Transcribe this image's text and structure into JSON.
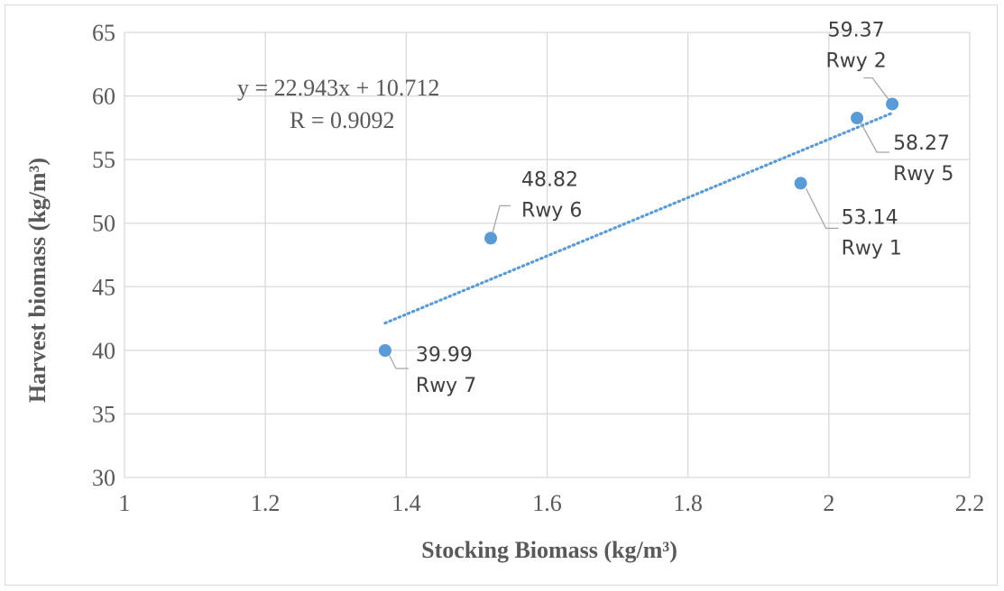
{
  "chart_data": {
    "type": "scatter",
    "title": "",
    "xlabel": "Stocking Biomass (kg/m³)",
    "ylabel": "Harvest biomass (kg/m³)",
    "xlim": [
      1,
      2.2
    ],
    "ylim": [
      30,
      65
    ],
    "xticks": [
      "1",
      "1.2",
      "1.4",
      "1.6",
      "1.8",
      "2",
      "2.2"
    ],
    "yticks": [
      "30",
      "35",
      "40",
      "45",
      "50",
      "55",
      "60",
      "65"
    ],
    "grid": true,
    "legend": "none",
    "marker_color": "#5b9bd5",
    "trendline_color": "#5b9bd5",
    "points": [
      {
        "x": 1.96,
        "y": 53.14,
        "value_label": "53.14",
        "name": "Rwy 1"
      },
      {
        "x": 2.09,
        "y": 59.37,
        "value_label": "59.37",
        "name": "Rwy 2"
      },
      {
        "x": 2.04,
        "y": 58.27,
        "value_label": "58.27",
        "name": "Rwy 5"
      },
      {
        "x": 1.52,
        "y": 48.82,
        "value_label": "48.82",
        "name": "Rwy 6"
      },
      {
        "x": 1.37,
        "y": 39.99,
        "value_label": "39.99",
        "name": "Rwy 7"
      }
    ],
    "trendline": {
      "slope": 22.943,
      "intercept": 10.712,
      "x_range": [
        1.37,
        2.09
      ],
      "style": "dotted",
      "equation": "y = 22.943x + 10.712",
      "r_text": "R  = 0.9092"
    }
  }
}
